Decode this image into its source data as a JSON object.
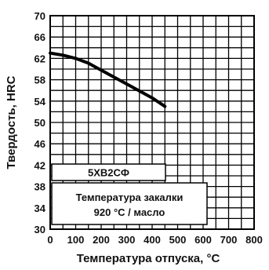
{
  "chart_data": {
    "type": "line",
    "xlabel": "Температура отпуска, °С",
    "ylabel": "Твердость, HRC",
    "xlim": [
      0,
      800
    ],
    "ylim": [
      30,
      70
    ],
    "x_ticks": [
      0,
      100,
      200,
      300,
      400,
      500,
      600,
      700,
      800
    ],
    "y_ticks": [
      30,
      34,
      38,
      42,
      46,
      50,
      54,
      58,
      62,
      66,
      70
    ],
    "grid": true,
    "series": [
      {
        "x": [
          0,
          50,
          100,
          150,
          200,
          250,
          300,
          350,
          400,
          450
        ],
        "y": [
          63,
          62.6,
          62,
          61.1,
          59.8,
          58.5,
          57.2,
          55.9,
          54.6,
          53
        ]
      }
    ],
    "annotations": {
      "steel_grade": "5ХВ2СФ",
      "quench_line1": "Температура закалки",
      "quench_line2": "920 °С / масло"
    }
  }
}
